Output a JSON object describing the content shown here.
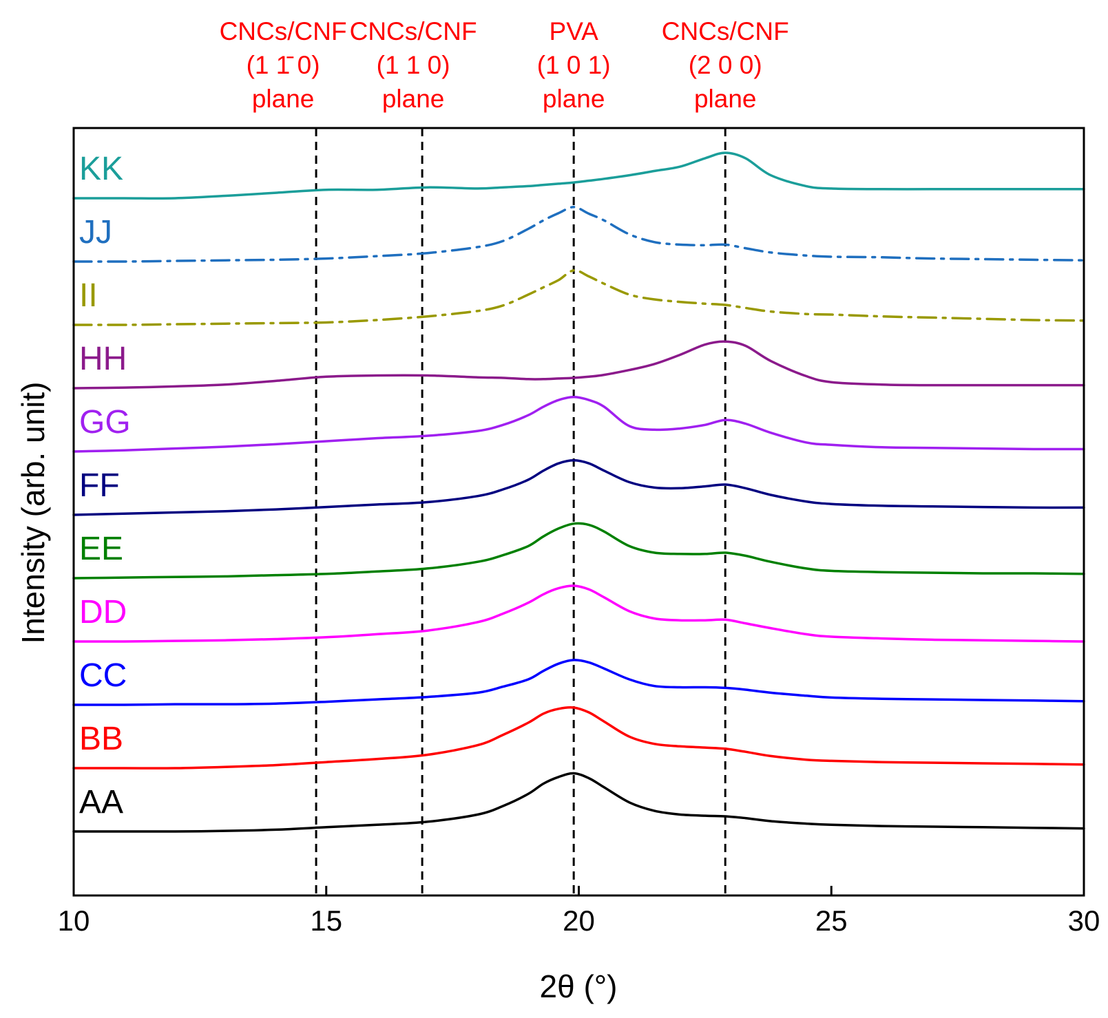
{
  "chart_data": {
    "type": "line",
    "title": "",
    "xlabel": "2θ (°)",
    "ylabel": "Intensity (arb. unit)",
    "xlim": [
      10,
      30
    ],
    "xticks": [
      10,
      15,
      20,
      25,
      30
    ],
    "grid": false,
    "legend": "inline labels at left of each trace",
    "annotation_color": "#ff0000",
    "reference_lines": [
      {
        "x": 14.8,
        "label_lines": [
          "CNCs/CNF",
          "(1 1̄ 0)",
          "plane"
        ]
      },
      {
        "x": 16.9,
        "label_lines": [
          "CNCs/CNF",
          "(1 1 0)",
          "plane"
        ]
      },
      {
        "x": 19.9,
        "label_lines": [
          "PVA",
          "(1 0 1)",
          "plane"
        ]
      },
      {
        "x": 22.9,
        "label_lines": [
          "CNCs/CNF",
          "(2 0 0)",
          "plane"
        ]
      }
    ],
    "x": [
      10,
      11,
      12,
      13,
      14,
      15,
      16,
      17,
      18,
      18.5,
      19,
      19.3,
      19.6,
      19.9,
      20.2,
      20.5,
      21,
      21.5,
      22,
      22.5,
      22.9,
      23.3,
      23.8,
      24.5,
      25,
      26,
      27,
      28,
      29,
      30
    ],
    "series": [
      {
        "name": "AA",
        "color": "#000000",
        "dash": "solid",
        "offset": 0,
        "values": [
          0,
          0,
          0,
          0.01,
          0.03,
          0.07,
          0.11,
          0.16,
          0.28,
          0.42,
          0.62,
          0.79,
          0.9,
          0.96,
          0.88,
          0.73,
          0.48,
          0.34,
          0.28,
          0.26,
          0.25,
          0.22,
          0.17,
          0.13,
          0.11,
          0.09,
          0.08,
          0.07,
          0.06,
          0.05
        ]
      },
      {
        "name": "BB",
        "color": "#ff0000",
        "dash": "solid",
        "offset": 1,
        "values": [
          0,
          0,
          0,
          0.02,
          0.05,
          0.1,
          0.15,
          0.22,
          0.38,
          0.55,
          0.75,
          0.9,
          0.98,
          1.0,
          0.92,
          0.77,
          0.52,
          0.4,
          0.36,
          0.34,
          0.32,
          0.27,
          0.2,
          0.14,
          0.12,
          0.1,
          0.09,
          0.08,
          0.07,
          0.06
        ]
      },
      {
        "name": "CC",
        "color": "#0000ff",
        "dash": "solid",
        "offset": 2,
        "values": [
          0,
          0,
          0.01,
          0.01,
          0.02,
          0.05,
          0.09,
          0.13,
          0.2,
          0.3,
          0.42,
          0.56,
          0.68,
          0.74,
          0.7,
          0.6,
          0.42,
          0.31,
          0.29,
          0.29,
          0.28,
          0.25,
          0.2,
          0.15,
          0.12,
          0.1,
          0.09,
          0.08,
          0.07,
          0.06
        ]
      },
      {
        "name": "DD",
        "color": "#ff00ff",
        "dash": "solid",
        "offset": 3,
        "values": [
          0,
          0,
          0.01,
          0.02,
          0.04,
          0.07,
          0.12,
          0.18,
          0.32,
          0.46,
          0.64,
          0.78,
          0.88,
          0.92,
          0.86,
          0.73,
          0.5,
          0.38,
          0.35,
          0.35,
          0.36,
          0.3,
          0.22,
          0.12,
          0.08,
          0.05,
          0.03,
          0.02,
          0.01,
          0
        ]
      },
      {
        "name": "EE",
        "color": "#008000",
        "dash": "solid",
        "offset": 4,
        "values": [
          0,
          0.01,
          0.02,
          0.03,
          0.05,
          0.07,
          0.11,
          0.16,
          0.27,
          0.38,
          0.53,
          0.69,
          0.82,
          0.9,
          0.88,
          0.77,
          0.53,
          0.42,
          0.4,
          0.4,
          0.42,
          0.37,
          0.27,
          0.16,
          0.12,
          0.1,
          0.09,
          0.08,
          0.08,
          0.07
        ]
      },
      {
        "name": "FF",
        "color": "#000080",
        "dash": "solid",
        "offset": 5,
        "values": [
          0,
          0.02,
          0.04,
          0.06,
          0.09,
          0.13,
          0.17,
          0.21,
          0.31,
          0.42,
          0.58,
          0.73,
          0.85,
          0.9,
          0.85,
          0.73,
          0.54,
          0.45,
          0.44,
          0.47,
          0.5,
          0.44,
          0.33,
          0.22,
          0.18,
          0.15,
          0.14,
          0.13,
          0.12,
          0.12
        ]
      },
      {
        "name": "GG",
        "color": "#a020f0",
        "dash": "solid",
        "offset": 6,
        "values": [
          0,
          0.02,
          0.05,
          0.08,
          0.12,
          0.17,
          0.22,
          0.26,
          0.34,
          0.44,
          0.6,
          0.74,
          0.85,
          0.9,
          0.85,
          0.74,
          0.42,
          0.36,
          0.38,
          0.44,
          0.52,
          0.46,
          0.31,
          0.15,
          0.11,
          0.07,
          0.06,
          0.05,
          0.04,
          0.04
        ]
      },
      {
        "name": "HH",
        "color": "#8b1a8b",
        "dash": "solid",
        "offset": 7,
        "values": [
          0,
          0.01,
          0.03,
          0.06,
          0.12,
          0.19,
          0.21,
          0.21,
          0.18,
          0.17,
          0.15,
          0.15,
          0.16,
          0.17,
          0.19,
          0.22,
          0.3,
          0.4,
          0.55,
          0.72,
          0.77,
          0.7,
          0.45,
          0.2,
          0.1,
          0.06,
          0.05,
          0.05,
          0.05,
          0.05
        ]
      },
      {
        "name": "II",
        "color": "#999900",
        "dash": "dashdot",
        "offset": 8,
        "values": [
          0,
          0,
          0.01,
          0.02,
          0.03,
          0.04,
          0.08,
          0.14,
          0.23,
          0.32,
          0.5,
          0.62,
          0.74,
          0.9,
          0.8,
          0.68,
          0.5,
          0.42,
          0.38,
          0.35,
          0.33,
          0.28,
          0.22,
          0.18,
          0.17,
          0.14,
          0.12,
          0.1,
          0.08,
          0.07
        ]
      },
      {
        "name": "JJ",
        "color": "#1f6fbf",
        "dash": "dashdot",
        "offset": 9,
        "values": [
          0,
          0,
          0.01,
          0.02,
          0.03,
          0.05,
          0.09,
          0.14,
          0.24,
          0.34,
          0.54,
          0.68,
          0.8,
          0.9,
          0.79,
          0.68,
          0.45,
          0.32,
          0.28,
          0.27,
          0.28,
          0.22,
          0.15,
          0.1,
          0.08,
          0.07,
          0.05,
          0.04,
          0.03,
          0.02
        ]
      },
      {
        "name": "KK",
        "color": "#1b9e9a",
        "dash": "solid",
        "offset": 10,
        "values": [
          0,
          0,
          0,
          0.04,
          0.09,
          0.14,
          0.14,
          0.18,
          0.16,
          0.18,
          0.2,
          0.22,
          0.24,
          0.26,
          0.29,
          0.32,
          0.38,
          0.45,
          0.52,
          0.66,
          0.75,
          0.66,
          0.38,
          0.2,
          0.16,
          0.15,
          0.15,
          0.15,
          0.15,
          0.15
        ]
      }
    ]
  }
}
